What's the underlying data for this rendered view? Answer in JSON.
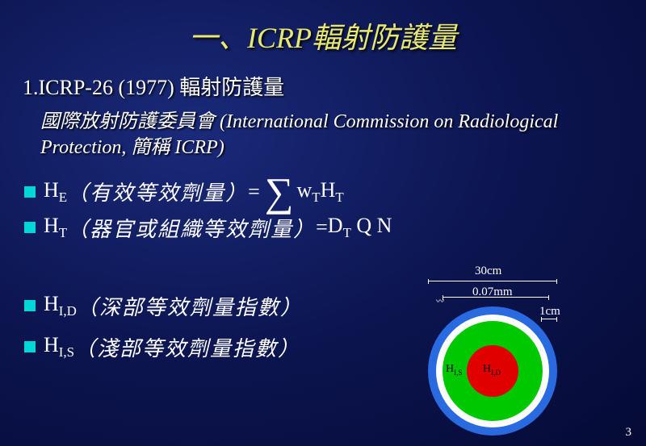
{
  "title": "一、ICRP輻射防護量",
  "subtitle": "1.ICRP-26 (1977) 輻射防護量",
  "para": "國際放射防護委員會 (International Commission on Radiological Protection, 簡稱 ICRP)",
  "bullets": {
    "he_lhs": "H",
    "he_sub": "E",
    "he_desc": "（有效等效劑量）",
    "he_eq": "= ",
    "he_rhs_w": "w",
    "he_rhs_wsub": "T",
    "he_rhs_h": "H",
    "he_rhs_hsub": "T",
    "ht_lhs": "H",
    "ht_sub": "T",
    "ht_desc": "（器官或組織等效劑量）",
    "ht_eq": "= ",
    "ht_rhs_d": "D",
    "ht_rhs_dsub": "T",
    "ht_rhs_rest": " Q N",
    "hid_lhs": "H",
    "hid_sub": "I,D",
    "hid_desc": "（深部等效劑量指數）",
    "his_lhs": "H",
    "his_sub": "I,S",
    "his_desc": "（淺部等效劑量指數）"
  },
  "diagram": {
    "outer_color": "#2a6ae0",
    "ring_color": "#ffffff",
    "mid_color": "#00c800",
    "inner_color": "#e00000",
    "outer_r": 80,
    "ring_r": 70,
    "mid_r": 62,
    "inner_r": 32,
    "label30": "30cm",
    "label007": "0.07mm",
    "label1": "1cm",
    "label_his": "H",
    "label_his_sub": "I,S",
    "label_hid": "H",
    "label_hid_sub": "I,D"
  },
  "pagenum": "3"
}
